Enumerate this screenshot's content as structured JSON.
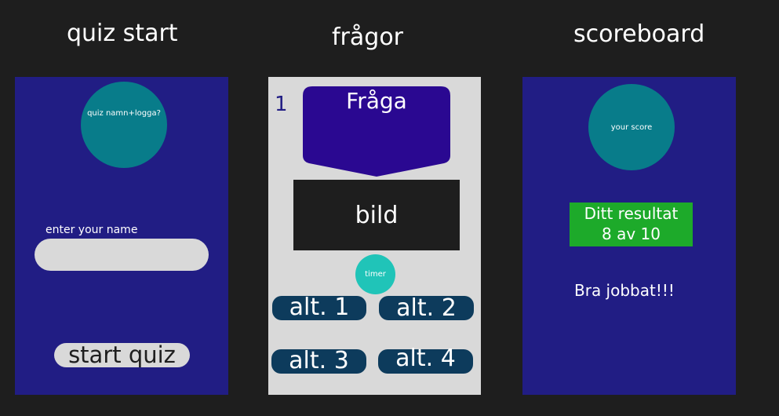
{
  "screens": {
    "start": {
      "heading": "quiz start",
      "logo_text": "quiz namn+logga?",
      "name_label": "enter your name",
      "name_value": "",
      "start_label": "start quiz"
    },
    "questions": {
      "heading": "frågor",
      "number": "1",
      "question_text": "Fråga",
      "image_text": "bild",
      "timer_text": "timer",
      "answers": [
        "alt. 1",
        "alt. 2",
        "alt. 3",
        "alt. 4"
      ]
    },
    "scoreboard": {
      "heading": "scoreboard",
      "score_circle_text": "your score",
      "result_line1": "Ditt resultat",
      "result_line2": "8 av 10",
      "message": "Bra jobbat!!!"
    }
  },
  "colors": {
    "background": "#1e1e1e",
    "frame_blue": "#211d84",
    "frame_grey": "#d9d9d9",
    "teal": "#087c8a",
    "timer_teal": "#20c4b8",
    "question_purple": "#2a0891",
    "image_dark": "#1e1e1e",
    "answer_navy": "#0d3b5c",
    "result_green": "#1daa2a",
    "input_grey": "#d9d9d9"
  }
}
